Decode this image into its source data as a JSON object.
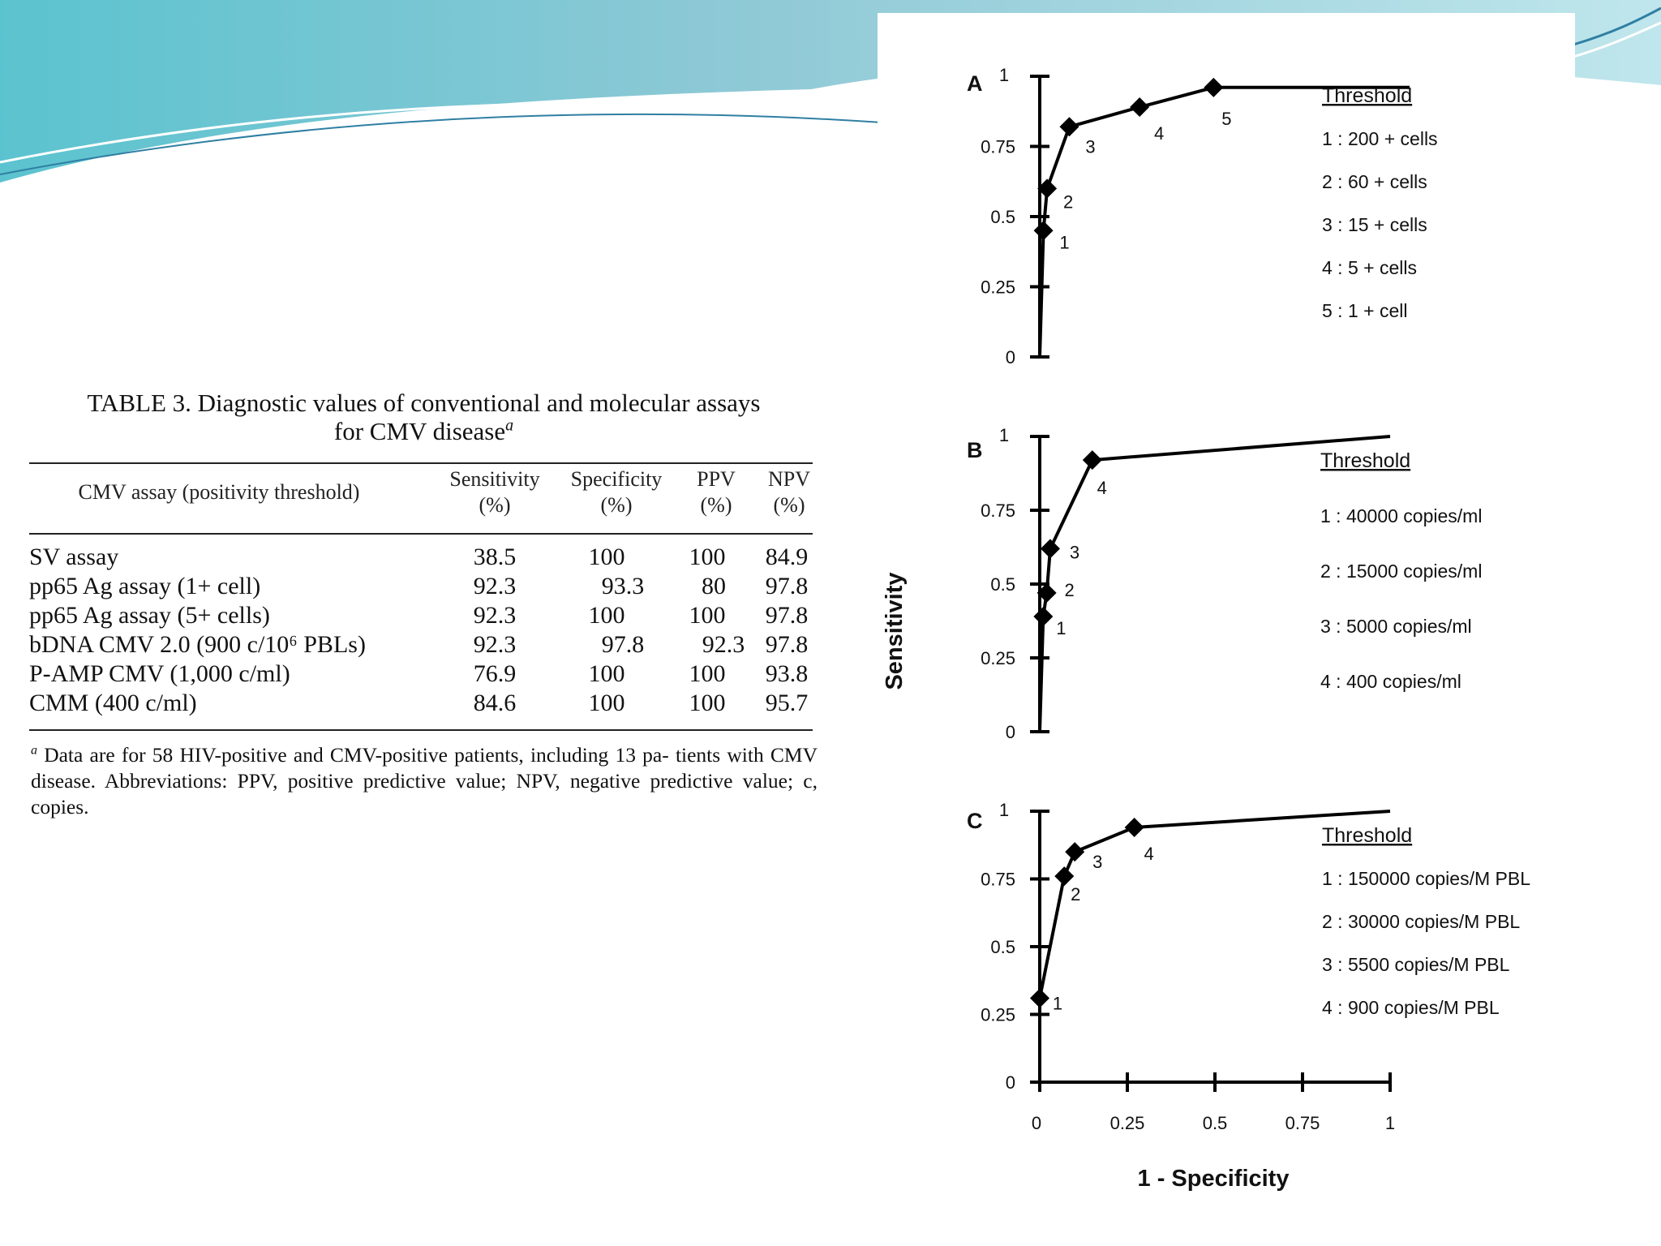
{
  "table": {
    "caption_line1": "TABLE 3. Diagnostic values of conventional and molecular assays",
    "caption_line2": "for CMV disease",
    "caption_marker": "a",
    "headers": {
      "assay": "CMV assay (positivity threshold)",
      "sensitivity_l1": "Sensitivity",
      "sensitivity_l2": "(%)",
      "specificity_l1": "Specificity",
      "specificity_l2": "(%)",
      "ppv_l1": "PPV",
      "ppv_l2": "(%)",
      "npv_l1": "NPV",
      "npv_l2": "(%)"
    },
    "rows": [
      {
        "assay": "SV assay",
        "sensitivity": "38.5",
        "specificity": "100",
        "ppv": "100",
        "npv": "84.9"
      },
      {
        "assay": "pp65 Ag assay (1+ cell)",
        "sensitivity": "92.3",
        "specificity": "93.3",
        "ppv": "80",
        "npv": "97.8"
      },
      {
        "assay": "pp65 Ag assay (5+ cells)",
        "sensitivity": "92.3",
        "specificity": "100",
        "ppv": "100",
        "npv": "97.8"
      },
      {
        "assay": "bDNA CMV 2.0 (900 c/10⁶ PBLs)",
        "sensitivity": "92.3",
        "specificity": "97.8",
        "ppv": "92.3",
        "npv": "97.8"
      },
      {
        "assay": "P-AMP CMV (1,000 c/ml)",
        "sensitivity": "76.9",
        "specificity": "100",
        "ppv": "100",
        "npv": "93.8"
      },
      {
        "assay": "CMM (400 c/ml)",
        "sensitivity": "84.6",
        "specificity": "100",
        "ppv": "100",
        "npv": "95.7"
      }
    ],
    "footnote_marker": "a",
    "footnote": "Data are for 58 HIV-positive and CMV-positive patients, including 13 pa- tients with CMV disease. Abbreviations: PPV, positive predictive value; NPV, negative predictive value; c, copies."
  },
  "chart_data": [
    {
      "type": "line",
      "panel": "A",
      "xlabel": "1 - Specificity",
      "ylabel": "Sensitivity",
      "xlim": [
        0,
        1
      ],
      "ylim": [
        0,
        1
      ],
      "yticks": [
        "0",
        "0.25",
        "0.5",
        "0.75",
        "1"
      ],
      "series": [
        {
          "x": [
            0,
            0.01,
            0.02,
            0.08,
            0.27,
            0.47,
            1.0
          ],
          "y": [
            0,
            0.45,
            0.6,
            0.82,
            0.89,
            0.96,
            0.96
          ]
        }
      ],
      "markers": [
        {
          "label": "1",
          "x": 0.01,
          "y": 0.45
        },
        {
          "label": "2",
          "x": 0.02,
          "y": 0.6
        },
        {
          "label": "3",
          "x": 0.08,
          "y": 0.82
        },
        {
          "label": "4",
          "x": 0.27,
          "y": 0.89
        },
        {
          "label": "5",
          "x": 0.47,
          "y": 0.96
        }
      ],
      "legend_title": "Threshold",
      "legend": [
        "1 : 200 + cells",
        "2 : 60 + cells",
        "3 : 15 + cells",
        "4 : 5 + cells",
        "5 : 1 + cell"
      ],
      "legend_position": "right"
    },
    {
      "type": "line",
      "panel": "B",
      "xlim": [
        0,
        1
      ],
      "ylim": [
        0,
        1
      ],
      "yticks": [
        "0",
        "0.25",
        "0.5",
        "0.75",
        "1"
      ],
      "series": [
        {
          "x": [
            0,
            0.01,
            0.02,
            0.03,
            0.15,
            1.0
          ],
          "y": [
            0,
            0.39,
            0.47,
            0.62,
            0.92,
            1.0
          ]
        }
      ],
      "markers": [
        {
          "label": "1",
          "x": 0.01,
          "y": 0.39
        },
        {
          "label": "2",
          "x": 0.02,
          "y": 0.47
        },
        {
          "label": "3",
          "x": 0.03,
          "y": 0.62
        },
        {
          "label": "4",
          "x": 0.15,
          "y": 0.92
        }
      ],
      "legend_title": "Threshold",
      "legend": [
        "1 : 40000 copies/ml",
        "2 : 15000 copies/ml",
        "3 : 5000 copies/ml",
        "4 : 400 copies/ml"
      ],
      "legend_position": "right"
    },
    {
      "type": "line",
      "panel": "C",
      "xlim": [
        0,
        1
      ],
      "ylim": [
        0,
        1
      ],
      "xticks": [
        "0",
        "0.25",
        "0.5",
        "0.75",
        "1"
      ],
      "yticks": [
        "0",
        "0.25",
        "0.5",
        "0.75",
        "1"
      ],
      "series": [
        {
          "x": [
            0,
            0.07,
            0.1,
            0.27,
            1.0
          ],
          "y": [
            0.31,
            0.76,
            0.85,
            0.94,
            1.0
          ]
        }
      ],
      "markers": [
        {
          "label": "1",
          "x": 0.0,
          "y": 0.31
        },
        {
          "label": "2",
          "x": 0.07,
          "y": 0.76
        },
        {
          "label": "3",
          "x": 0.1,
          "y": 0.85
        },
        {
          "label": "4",
          "x": 0.27,
          "y": 0.94
        }
      ],
      "legend_title": "Threshold",
      "legend": [
        "1 : 150000 copies/M PBL",
        "2 : 30000 copies/M PBL",
        "3 : 5500 copies/M PBL",
        "4 : 900 copies/M PBL"
      ],
      "legend_position": "right"
    }
  ],
  "colors": {
    "line": "#000000",
    "banner_light": "#a8dde2",
    "banner_mid": "#6fc2cd",
    "banner_dark": "#3b9fb5"
  }
}
